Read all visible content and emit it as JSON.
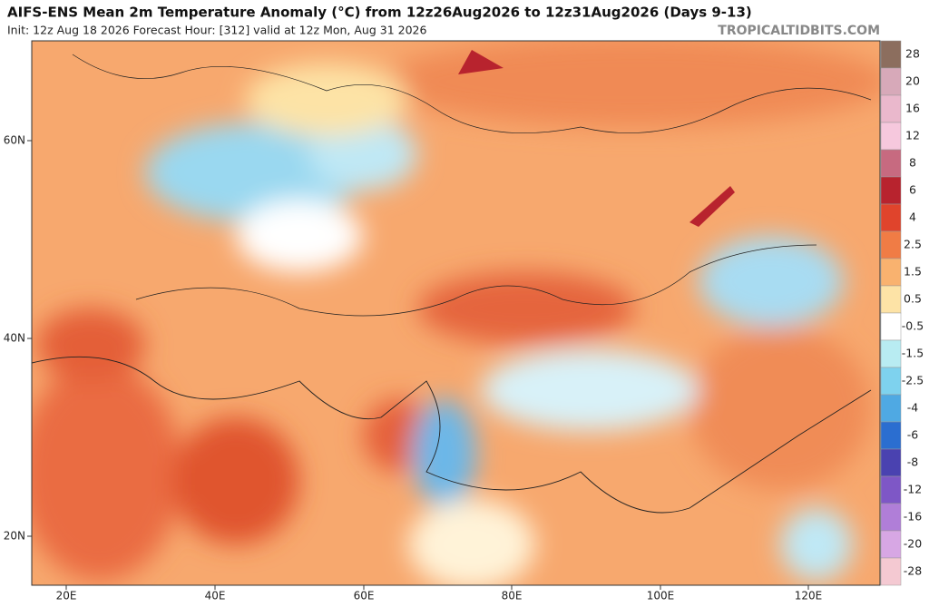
{
  "header": {
    "title": "AIFS-ENS Mean 2m Temperature Anomaly (°C) from 12z26Aug2026 to 12z31Aug2026 (Days 9-13)",
    "subtitle": "Init: 12z Aug 18 2026   Forecast Hour: [312]   valid at 12z Mon, Aug 31 2026",
    "source": "TROPICALTIDBITS.COM"
  },
  "map": {
    "lat_labels": [
      "60N",
      "40N",
      "20N"
    ],
    "lon_labels": [
      "20E",
      "40E",
      "60E",
      "80E",
      "100E",
      "120E"
    ]
  },
  "colorbar": {
    "labels": [
      28,
      20,
      16,
      12,
      8,
      6,
      4,
      2.5,
      1.5,
      0.5,
      -0.5,
      -1.5,
      -2.5,
      -4,
      -6,
      -8,
      -12,
      -16,
      -20,
      -28
    ],
    "colors": [
      "#8c6e5e",
      "#d7a9b9",
      "#eab8cc",
      "#f6c8dd",
      "#c76a80",
      "#b8232e",
      "#e0442c",
      "#f07c45",
      "#f9b26f",
      "#fde3a6",
      "#ffffff",
      "#b8ecf2",
      "#7ed2ee",
      "#4fa9e3",
      "#2b6ed0",
      "#4a42b0",
      "#7e57c6",
      "#b07ed8",
      "#d7a7e4",
      "#f4c9d2"
    ]
  }
}
